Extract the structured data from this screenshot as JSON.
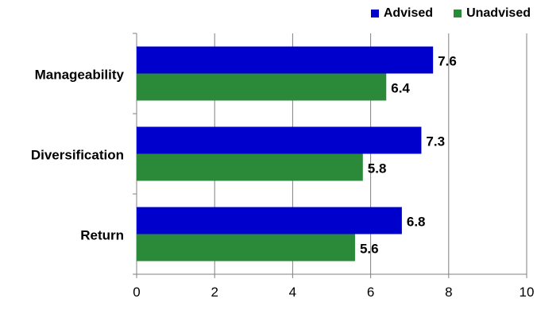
{
  "chart_data": {
    "type": "bar",
    "orientation": "horizontal",
    "categories": [
      "Manageability",
      "Diversification",
      "Return"
    ],
    "series": [
      {
        "name": "Advised",
        "values": [
          7.6,
          7.3,
          6.8
        ],
        "color": "#0000cc"
      },
      {
        "name": "Unadvised",
        "values": [
          6.4,
          5.8,
          5.6
        ],
        "color": "#2a8a3a"
      }
    ],
    "xlim": [
      0,
      10
    ],
    "xticks": [
      "0",
      "2",
      "4",
      "6",
      "8",
      "10"
    ],
    "tick_values": [
      0,
      2,
      4,
      6,
      8,
      10
    ],
    "data_labels": [
      [
        "7.6",
        "7.3",
        "6.8"
      ],
      [
        "6.4",
        "5.8",
        "5.6"
      ]
    ],
    "grid": "vertical",
    "legend": "top-right",
    "title": "",
    "xlabel": "",
    "ylabel": ""
  }
}
